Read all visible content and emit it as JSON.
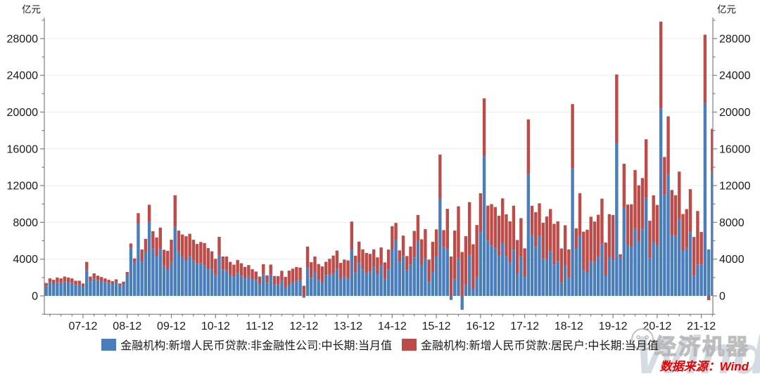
{
  "axes": {
    "unit_left": "亿元",
    "unit_right": "亿元"
  },
  "legend": {
    "items": [
      {
        "label": "金融机构:新增人民币贷款:非金融性公司:中长期:当月值",
        "color": "#4a7ebb"
      },
      {
        "label": "金融机构:新增人民币贷款:居民户:中长期:当月值",
        "color": "#bd4b48"
      }
    ]
  },
  "source_note": "数据来源：Wind",
  "watermarks": {
    "brand_text": "经济机器",
    "wind_text": "Wind"
  },
  "chart_data": {
    "type": "bar",
    "stacked": true,
    "frequency": "monthly",
    "x_start": "2007-01",
    "x_end": "2022-03",
    "x_tick_labels": [
      "07-12",
      "08-12",
      "09-12",
      "10-12",
      "11-12",
      "12-12",
      "13-12",
      "14-12",
      "15-12",
      "16-12",
      "17-12",
      "18-12",
      "19-12",
      "20-12",
      "21-12"
    ],
    "ylabel": "亿元",
    "ylim": [
      -2000,
      30000
    ],
    "ytick_major": 4000,
    "ytick_minor": 2000,
    "grid": "horizontal-major",
    "legend_position": "bottom",
    "series": [
      {
        "name": "金融机构:新增人民币贷款:非金融性公司:中长期:当月值",
        "color": "#4a7ebb",
        "values": [
          1450,
          1050,
          1500,
          1300,
          1500,
          1400,
          1550,
          1450,
          1400,
          1200,
          1250,
          1000,
          2800,
          1600,
          1900,
          1700,
          1600,
          1500,
          1400,
          1300,
          1500,
          1100,
          1300,
          2300,
          5229,
          3678,
          7873,
          3744,
          4749,
          8063,
          5104,
          4317,
          5105,
          3231,
          2825,
          3678,
          7521,
          4763,
          4217,
          3861,
          4326,
          3856,
          3468,
          3576,
          3316,
          2874,
          2954,
          2269,
          4424,
          2885,
          2780,
          2300,
          2100,
          2500,
          2200,
          1900,
          2150,
          1800,
          1750,
          1300,
          2350,
          1430,
          2305,
          1265,
          1200,
          1630,
          920,
          1220,
          1480,
          1685,
          1708,
          -200,
          3098,
          1963,
          2530,
          1750,
          1455,
          2270,
          2320,
          2452,
          2932,
          1793,
          2118,
          1900,
          5042,
          2573,
          3602,
          2883,
          2472,
          2656,
          3148,
          2372,
          3280,
          1852,
          2879,
          5050,
          6121,
          3717,
          4307,
          2776,
          3414,
          4190,
          5987,
          3332,
          4095,
          1519,
          2606,
          4287,
          10600,
          5338,
          5078,
          -440,
          1825,
          4105,
          -1514,
          1209,
          4466,
          728,
          2018,
          6954,
          15200,
          6018,
          5482,
          5226,
          4396,
          5778,
          4332,
          3639,
          5029,
          2366,
          4275,
          2059,
          13300,
          6585,
          5337,
          6532,
          4031,
          4001,
          4875,
          3425,
          3800,
          1429,
          3295,
          1976,
          13900,
          5127,
          6573,
          2823,
          2524,
          3753,
          3678,
          4285,
          5637,
          2216,
          4206,
          3978,
          16600,
          4157,
          9643,
          5547,
          5305,
          7348,
          5968,
          7252,
          10680,
          4113,
          5887,
          5500,
          20400,
          11000,
          13300,
          6605,
          6528,
          8367,
          4937,
          5219,
          6948,
          2190,
          3417,
          3393,
          21000,
          5052,
          13448
        ]
      },
      {
        "name": "金融机构:新增人民币贷款:居民户:中长期:当月值",
        "color": "#bd4b48",
        "values": [
          450,
          350,
          400,
          450,
          500,
          500,
          550,
          550,
          500,
          450,
          400,
          350,
          900,
          500,
          550,
          500,
          450,
          400,
          350,
          300,
          300,
          250,
          250,
          300,
          472,
          403,
          1130,
          1305,
          1460,
          1855,
          1935,
          2039,
          2327,
          1788,
          2080,
          2435,
          3433,
          2343,
          2460,
          2630,
          2434,
          2255,
          2180,
          2286,
          2429,
          2328,
          1896,
          1766,
          2001,
          1400,
          1500,
          1400,
          1300,
          1400,
          1350,
          1250,
          1200,
          1100,
          900,
          800,
          1100,
          800,
          1100,
          900,
          950,
          1100,
          1150,
          1530,
          1480,
          1456,
          1367,
          1100,
          2268,
          1700,
          1750,
          1717,
          1751,
          1442,
          1713,
          1935,
          1998,
          1795,
          1829,
          1963,
          3049,
          1803,
          2307,
          2179,
          2203,
          1916,
          1914,
          1821,
          1990,
          1794,
          2164,
          2531,
          1820,
          1235,
          2254,
          1556,
          1955,
          2882,
          2816,
          2827,
          3163,
          2427,
          3278,
          2949,
          4783,
          1820,
          4397,
          4280,
          5281,
          5639,
          4773,
          5286,
          5741,
          4891,
          5692,
          4217,
          6293,
          3804,
          4503,
          4441,
          4326,
          4833,
          4544,
          4470,
          4786,
          3710,
          4178,
          3112,
          5910,
          3220,
          3770,
          3543,
          3923,
          4634,
          4576,
          4415,
          4309,
          3730,
          4391,
          3079,
          6969,
          2226,
          4605,
          4165,
          4677,
          4858,
          4417,
          4540,
          4943,
          3587,
          4689,
          4824,
          7491,
          371,
          4738,
          4389,
          4662,
          6349,
          6063,
          5571,
          6362,
          4059,
          5049,
          4392,
          9448,
          4113,
          6239,
          4918,
          4426,
          5156,
          3974,
          4224,
          4667,
          4221,
          5821,
          3558,
          7424,
          -459,
          4735
        ]
      }
    ]
  }
}
